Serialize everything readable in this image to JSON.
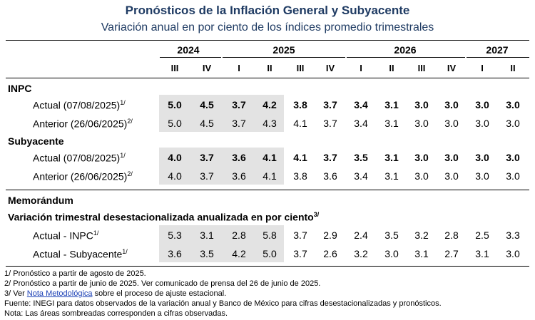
{
  "title": "Pronósticos de la Inflación General y Subyacente",
  "subtitle": "Variación anual en por ciento de los índices promedio trimestrales",
  "years": [
    "2024",
    "2025",
    "2026",
    "2027"
  ],
  "quarters": [
    "III",
    "IV",
    "I",
    "II",
    "III",
    "IV",
    "I",
    "II",
    "III",
    "IV",
    "I",
    "II"
  ],
  "sections": {
    "inpc": "INPC",
    "subyacente": "Subyacente",
    "memorandum": "Memorándum",
    "trimestral": "Variación trimestral desestacionalizada anualizada en por ciento",
    "trimestral_sup": "3/"
  },
  "rows": {
    "inpc_actual": {
      "label": "Actual (07/08/2025)",
      "sup": "1/",
      "values": [
        "5.0",
        "4.5",
        "3.7",
        "4.2",
        "3.8",
        "3.7",
        "3.4",
        "3.1",
        "3.0",
        "3.0",
        "3.0",
        "3.0"
      ]
    },
    "inpc_anterior": {
      "label": "Anterior (26/06/2025)",
      "sup": "2/",
      "values": [
        "5.0",
        "4.5",
        "3.7",
        "4.3",
        "4.1",
        "3.7",
        "3.4",
        "3.1",
        "3.0",
        "3.0",
        "3.0",
        "3.0"
      ]
    },
    "sub_actual": {
      "label": "Actual (07/08/2025)",
      "sup": "1/",
      "values": [
        "4.0",
        "3.7",
        "3.6",
        "4.1",
        "4.1",
        "3.7",
        "3.5",
        "3.1",
        "3.0",
        "3.0",
        "3.0",
        "3.0"
      ]
    },
    "sub_anterior": {
      "label": "Anterior (26/06/2025)",
      "sup": "2/",
      "values": [
        "4.0",
        "3.7",
        "3.6",
        "4.1",
        "3.8",
        "3.6",
        "3.4",
        "3.1",
        "3.0",
        "3.0",
        "3.0",
        "3.0"
      ]
    },
    "mem_inpc": {
      "label": "Actual - INPC",
      "sup": "1/",
      "values": [
        "5.3",
        "3.1",
        "2.8",
        "5.8",
        "3.7",
        "2.9",
        "2.4",
        "3.5",
        "3.2",
        "2.8",
        "2.5",
        "3.3"
      ]
    },
    "mem_sub": {
      "label": "Actual - Subyacente",
      "sup": "1/",
      "values": [
        "3.6",
        "3.5",
        "4.2",
        "5.0",
        "3.7",
        "2.6",
        "3.2",
        "3.0",
        "3.1",
        "2.7",
        "3.1",
        "3.0"
      ]
    }
  },
  "footnotes": {
    "f1": "1/ Pronóstico a partir de agosto de 2025.",
    "f2": "2/ Pronóstico a partir de junio de 2025. Ver comunicado de prensa del 26 de junio de 2025.",
    "f3_pre": "3/ Ver ",
    "f3_link": "Nota Metodológica",
    "f3_post": " sobre el proceso de ajuste estacional.",
    "fuente": "Fuente: INEGI para datos observados de la variación anual y Banco de México para cifras desestacionalizadas y pronósticos.",
    "nota": "Nota: Las áreas sombreadas corresponden a cifras observadas."
  }
}
